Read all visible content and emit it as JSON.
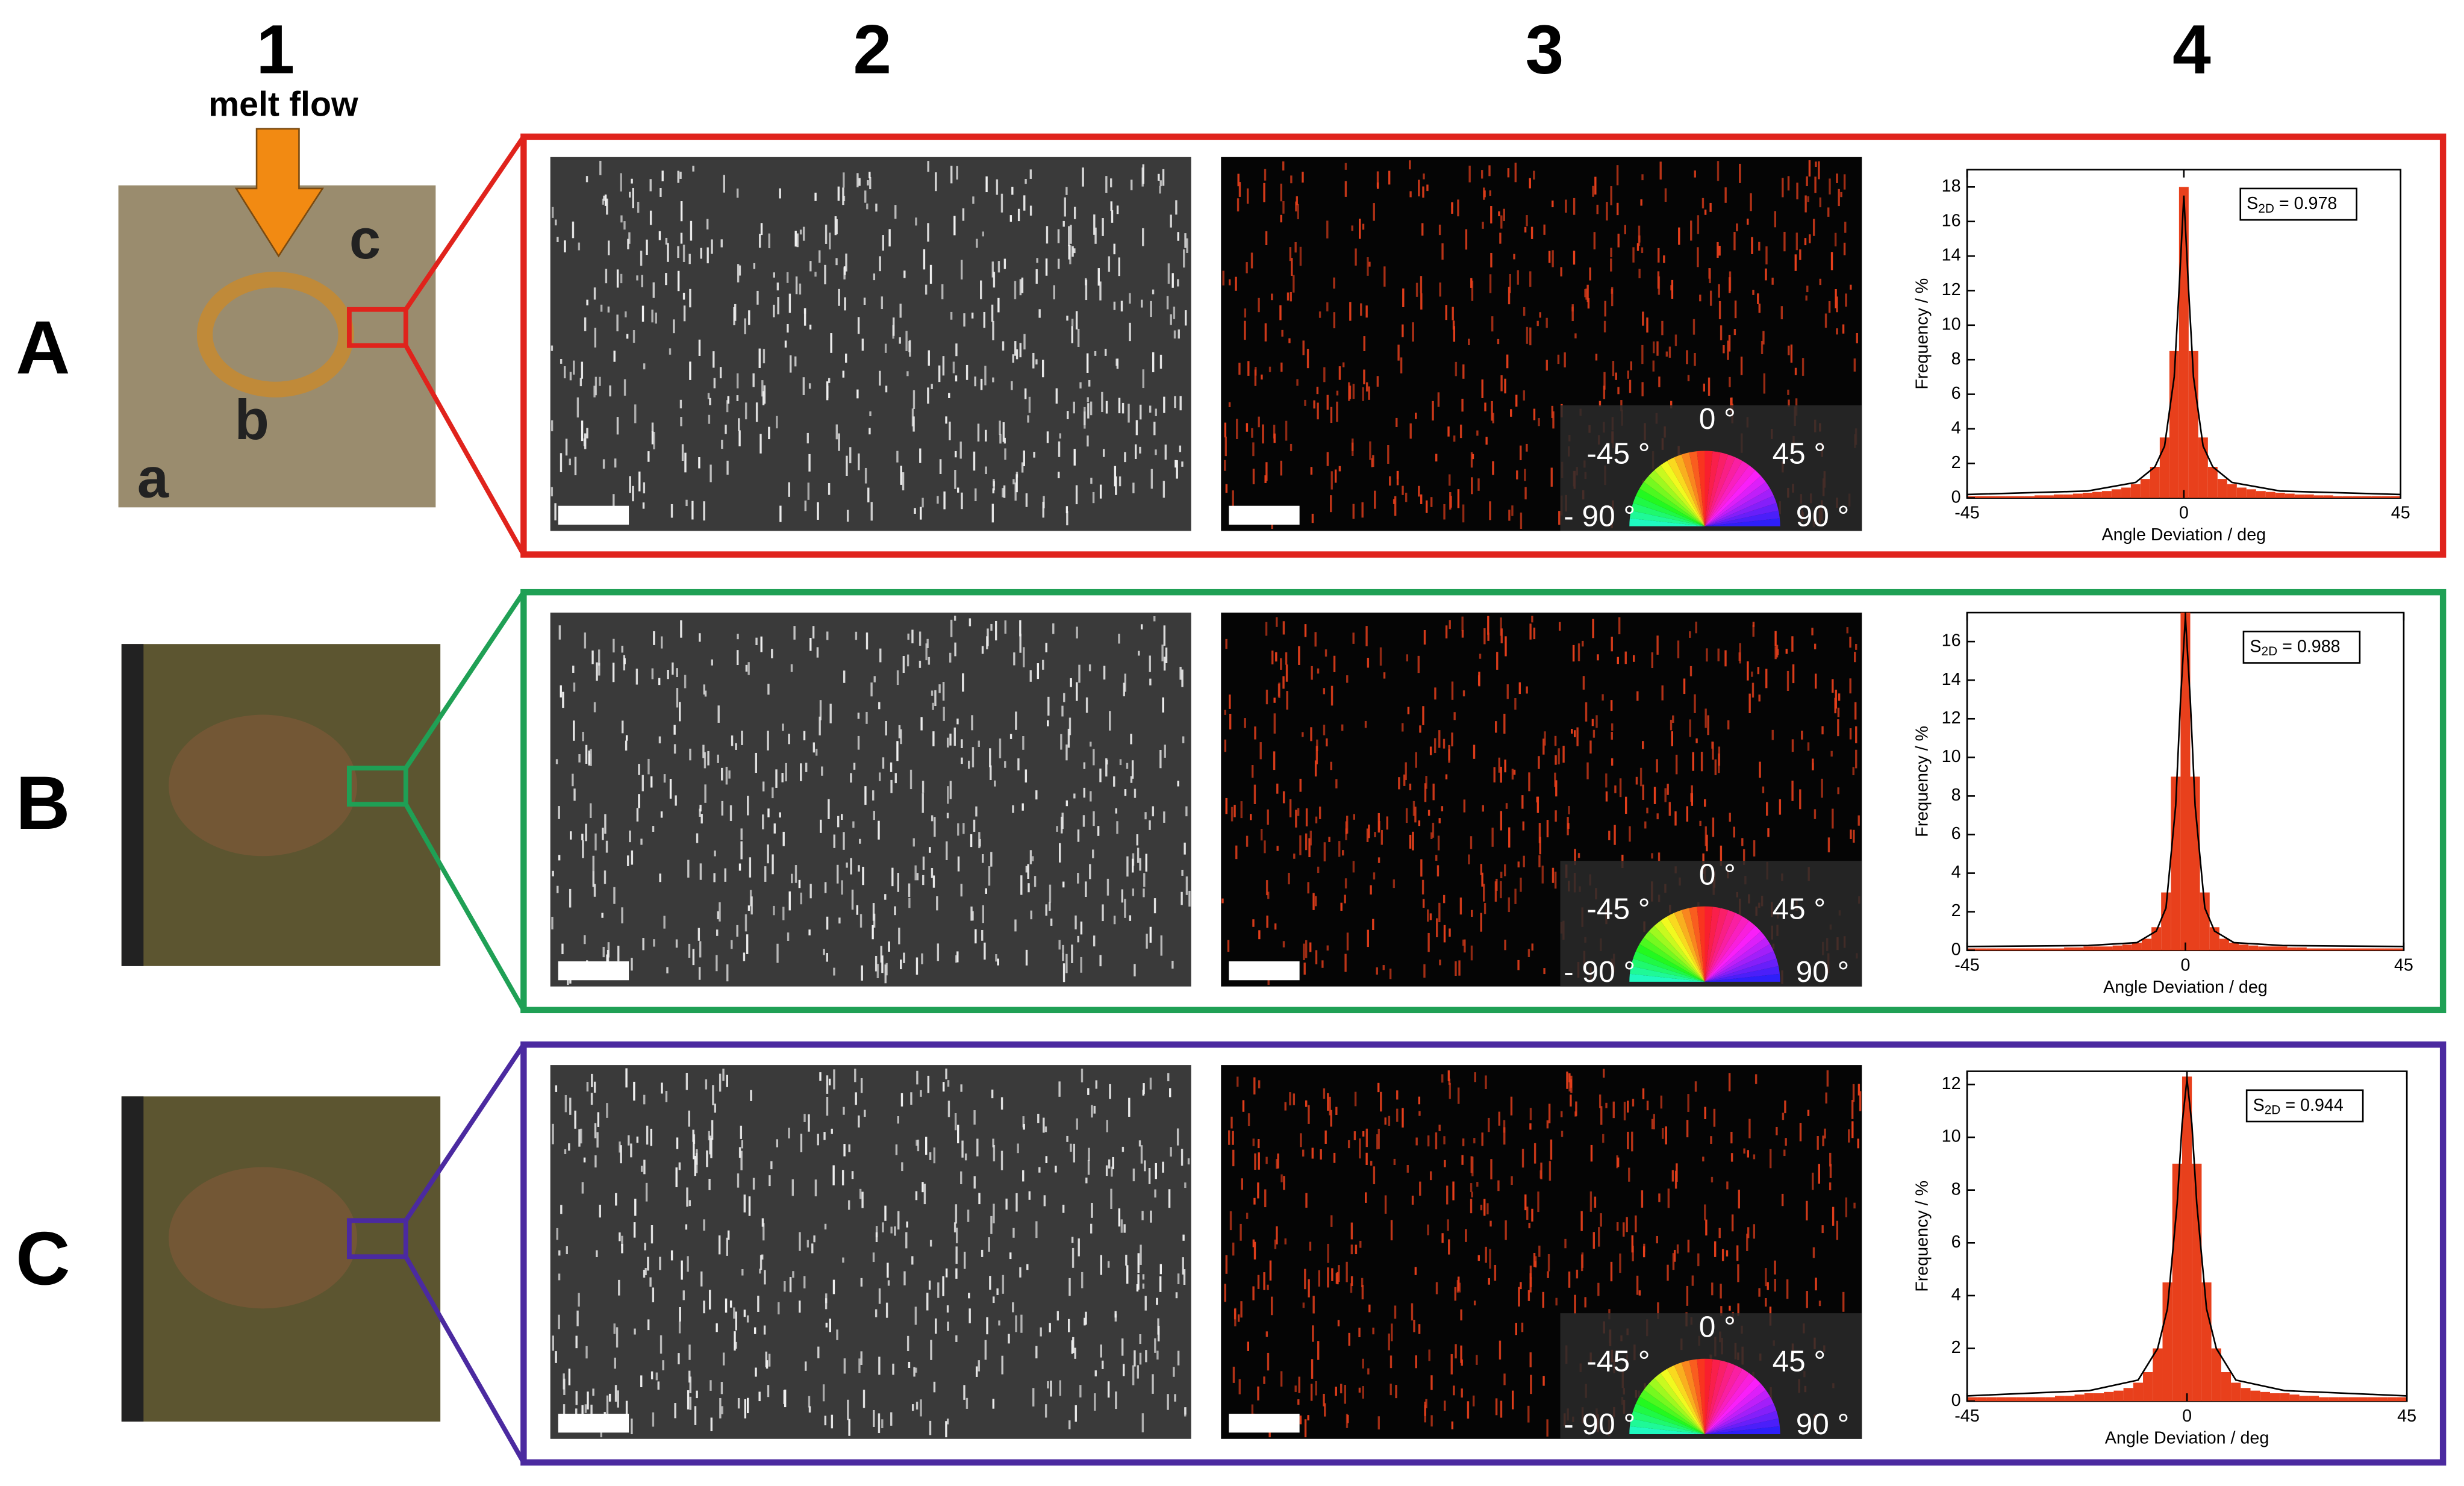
{
  "column_labels": [
    "1",
    "2",
    "3",
    "4"
  ],
  "row_labels": [
    "A",
    "B",
    "C"
  ],
  "melt_flow_label": "melt flow",
  "region_labels": [
    "a",
    "b",
    "c"
  ],
  "color_wheel_labels": [
    "0 °",
    "-45 °",
    "45 °",
    "- 90 °",
    "90 °"
  ],
  "chart_data": [
    {
      "type": "histogram",
      "xlabel": "Angle Deviation / deg",
      "ylabel": "Frequency / %",
      "color": "#e8401c",
      "bins": [
        -45,
        -43,
        -41,
        -39,
        -37,
        -35,
        -33,
        -31,
        -29,
        -27,
        -25,
        -23,
        -21,
        -19,
        -17,
        -15,
        -13,
        -11,
        -9,
        -7,
        -5,
        -3,
        -1,
        1,
        3,
        5,
        7,
        9,
        11,
        13,
        15,
        17,
        19,
        21,
        23,
        25,
        27,
        29,
        31,
        33,
        35,
        37,
        39,
        41,
        43,
        45
      ],
      "values": [
        0.1,
        0.1,
        0.1,
        0.1,
        0.1,
        0.1,
        0.1,
        0.15,
        0.15,
        0.2,
        0.2,
        0.25,
        0.3,
        0.35,
        0.4,
        0.5,
        0.6,
        0.8,
        1.1,
        1.8,
        3.5,
        8.5,
        18,
        8.5,
        3.5,
        1.8,
        1.1,
        0.8,
        0.6,
        0.5,
        0.4,
        0.35,
        0.3,
        0.25,
        0.2,
        0.2,
        0.15,
        0.15,
        0.1,
        0.1,
        0.1,
        0.1,
        0.1,
        0.1,
        0.1
      ],
      "fit": {
        "color": "#000000",
        "x": [
          -45,
          -20,
          -10,
          -6,
          -4,
          -2,
          -1,
          0,
          1,
          2,
          4,
          6,
          10,
          20,
          45
        ],
        "values": [
          0.2,
          0.4,
          0.9,
          1.8,
          3,
          7,
          12,
          17.5,
          12,
          7,
          3,
          1.8,
          0.9,
          0.4,
          0.2
        ]
      },
      "xlim": [
        -45,
        45
      ],
      "xticks": [
        -45,
        0,
        45
      ],
      "ylim": [
        0,
        19
      ],
      "yticks": [
        0,
        2,
        4,
        6,
        8,
        10,
        12,
        14,
        16,
        18
      ],
      "annotation": {
        "symbol": "S",
        "subscript": "2D",
        "text": " = 0.978"
      }
    },
    {
      "type": "histogram",
      "xlabel": "Angle Deviation / deg",
      "ylabel": "Frequency / %",
      "color": "#e8401c",
      "bins": [
        -45,
        -43,
        -41,
        -39,
        -37,
        -35,
        -33,
        -31,
        -29,
        -27,
        -25,
        -23,
        -21,
        -19,
        -17,
        -15,
        -13,
        -11,
        -9,
        -7,
        -5,
        -3,
        -1,
        1,
        3,
        5,
        7,
        9,
        11,
        13,
        15,
        17,
        19,
        21,
        23,
        25,
        27,
        29,
        31,
        33,
        35,
        37,
        39,
        41,
        43,
        45
      ],
      "values": [
        0.1,
        0.1,
        0.1,
        0.1,
        0.1,
        0.1,
        0.1,
        0.1,
        0.1,
        0.1,
        0.15,
        0.15,
        0.2,
        0.2,
        0.2,
        0.25,
        0.3,
        0.4,
        0.6,
        1.2,
        3,
        9,
        17.5,
        9,
        3,
        1.2,
        0.6,
        0.4,
        0.3,
        0.25,
        0.2,
        0.2,
        0.2,
        0.15,
        0.15,
        0.1,
        0.1,
        0.1,
        0.1,
        0.1,
        0.1,
        0.1,
        0.1,
        0.1,
        0.1
      ],
      "fit": {
        "color": "#000000",
        "x": [
          -45,
          -20,
          -10,
          -6,
          -4,
          -2,
          -1,
          0,
          1,
          2,
          4,
          6,
          10,
          20,
          45
        ],
        "values": [
          0.2,
          0.25,
          0.4,
          1,
          2.2,
          7.5,
          13,
          17.3,
          13,
          7.5,
          2.2,
          1,
          0.4,
          0.25,
          0.2
        ]
      },
      "xlim": [
        -45,
        45
      ],
      "xticks": [
        -45,
        0,
        45
      ],
      "ylim": [
        0,
        17.5
      ],
      "yticks": [
        0,
        2,
        4,
        6,
        8,
        10,
        12,
        14,
        16
      ],
      "annotation": {
        "symbol": "S",
        "subscript": "2D",
        "text": " = 0.988"
      }
    },
    {
      "type": "histogram",
      "xlabel": "Angle Deviation / deg",
      "ylabel": "Frequency / %",
      "color": "#e8401c",
      "bins": [
        -45,
        -43,
        -41,
        -39,
        -37,
        -35,
        -33,
        -31,
        -29,
        -27,
        -25,
        -23,
        -21,
        -19,
        -17,
        -15,
        -13,
        -11,
        -9,
        -7,
        -5,
        -3,
        -1,
        1,
        3,
        5,
        7,
        9,
        11,
        13,
        15,
        17,
        19,
        21,
        23,
        25,
        27,
        29,
        31,
        33,
        35,
        37,
        39,
        41,
        43,
        45
      ],
      "values": [
        0.15,
        0.15,
        0.15,
        0.15,
        0.15,
        0.15,
        0.15,
        0.15,
        0.15,
        0.2,
        0.2,
        0.25,
        0.3,
        0.3,
        0.35,
        0.4,
        0.5,
        0.7,
        1.1,
        2,
        4.5,
        9,
        12.3,
        9,
        4.5,
        2,
        1.1,
        0.7,
        0.5,
        0.4,
        0.35,
        0.3,
        0.3,
        0.25,
        0.2,
        0.2,
        0.15,
        0.15,
        0.15,
        0.15,
        0.15,
        0.15,
        0.15,
        0.15,
        0.15
      ],
      "fit": {
        "color": "#000000",
        "x": [
          -45,
          -20,
          -10,
          -6,
          -4,
          -2,
          -1,
          0,
          1,
          2,
          4,
          6,
          10,
          20,
          45
        ],
        "values": [
          0.2,
          0.4,
          0.8,
          2,
          3.5,
          7.5,
          10.5,
          12.2,
          10.5,
          7.5,
          3.5,
          2,
          0.8,
          0.4,
          0.2
        ]
      },
      "xlim": [
        -45,
        45
      ],
      "xticks": [
        -45,
        0,
        45
      ],
      "ylim": [
        0,
        12.5
      ],
      "yticks": [
        0,
        2,
        4,
        6,
        8,
        10,
        12
      ],
      "annotation": {
        "symbol": "S",
        "subscript": "2D",
        "text": " = 0.944"
      }
    }
  ]
}
